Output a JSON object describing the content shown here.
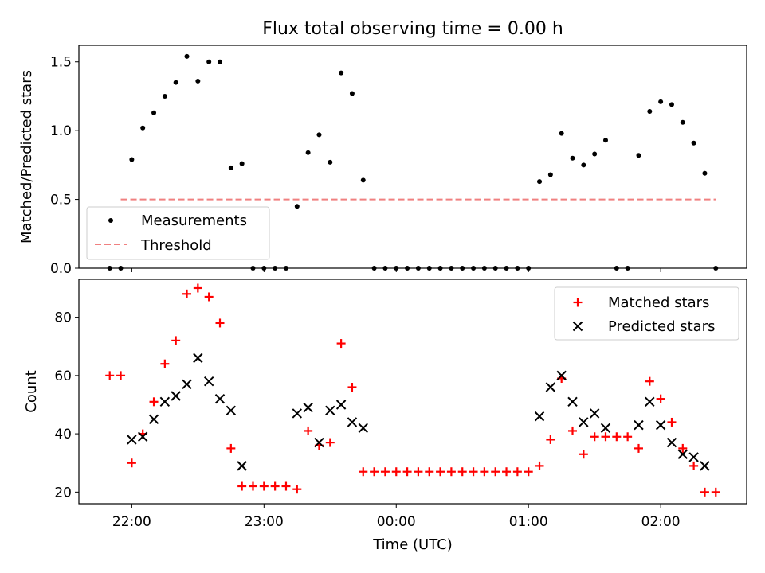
{
  "chart_data": [
    {
      "type": "scatter",
      "title": "Flux total observing time = 0.00 h",
      "ylabel": "Matched/Predicted stars",
      "xlabel": "",
      "ylim": [
        0,
        1.62
      ],
      "yticks": [
        0.0,
        0.5,
        1.0,
        1.5
      ],
      "ytick_labels": [
        "0.0",
        "0.5",
        "1.0",
        "1.5"
      ],
      "legend": {
        "position": "lower-left",
        "entries": [
          {
            "label": "Measurements",
            "marker": "dot",
            "color": "#000000"
          },
          {
            "label": "Threshold",
            "marker": "dashed-line",
            "color": "#f08080"
          }
        ]
      },
      "threshold": {
        "y": 0.5,
        "x_start": "21:55",
        "x_end": "02:25",
        "color": "#f08080"
      },
      "series": [
        {
          "name": "Measurements",
          "color": "#000000",
          "points": [
            [
              "21:50",
              0
            ],
            [
              "21:55",
              0
            ],
            [
              "22:00",
              0.79
            ],
            [
              "22:05",
              1.02
            ],
            [
              "22:10",
              1.13
            ],
            [
              "22:15",
              1.25
            ],
            [
              "22:20",
              1.35
            ],
            [
              "22:25",
              1.54
            ],
            [
              "22:30",
              1.36
            ],
            [
              "22:35",
              1.5
            ],
            [
              "22:40",
              1.5
            ],
            [
              "22:45",
              0.73
            ],
            [
              "22:50",
              0.76
            ],
            [
              "22:55",
              0
            ],
            [
              "23:00",
              0
            ],
            [
              "23:05",
              0
            ],
            [
              "23:10",
              0
            ],
            [
              "23:15",
              0.45
            ],
            [
              "23:20",
              0.84
            ],
            [
              "23:25",
              0.97
            ],
            [
              "23:30",
              0.77
            ],
            [
              "23:35",
              1.42
            ],
            [
              "23:40",
              1.27
            ],
            [
              "23:45",
              0.64
            ],
            [
              "23:50",
              0
            ],
            [
              "23:55",
              0
            ],
            [
              "00:00",
              0
            ],
            [
              "00:05",
              0
            ],
            [
              "00:10",
              0
            ],
            [
              "00:15",
              0
            ],
            [
              "00:20",
              0
            ],
            [
              "00:25",
              0
            ],
            [
              "00:30",
              0
            ],
            [
              "00:35",
              0
            ],
            [
              "00:40",
              0
            ],
            [
              "00:45",
              0
            ],
            [
              "00:50",
              0
            ],
            [
              "00:55",
              0
            ],
            [
              "01:00",
              0
            ],
            [
              "01:05",
              0.63
            ],
            [
              "01:10",
              0.68
            ],
            [
              "01:15",
              0.98
            ],
            [
              "01:20",
              0.8
            ],
            [
              "01:25",
              0.75
            ],
            [
              "01:30",
              0.83
            ],
            [
              "01:35",
              0.93
            ],
            [
              "01:40",
              0
            ],
            [
              "01:45",
              0
            ],
            [
              "01:50",
              0.82
            ],
            [
              "01:55",
              1.14
            ],
            [
              "02:00",
              1.21
            ],
            [
              "02:05",
              1.19
            ],
            [
              "02:10",
              1.06
            ],
            [
              "02:15",
              0.91
            ],
            [
              "02:20",
              0.69
            ],
            [
              "02:25",
              0
            ]
          ]
        }
      ]
    },
    {
      "type": "scatter",
      "title": "",
      "ylabel": "Count",
      "xlabel": "Time (UTC)",
      "ylim": [
        16,
        93
      ],
      "yticks": [
        20,
        40,
        60,
        80
      ],
      "ytick_labels": [
        "20",
        "40",
        "60",
        "80"
      ],
      "xlim": [
        "21:36",
        "02:39"
      ],
      "xticks": [
        "22:00",
        "23:00",
        "00:00",
        "01:00",
        "02:00"
      ],
      "xtick_labels": [
        "22:00",
        "23:00",
        "00:00",
        "01:00",
        "02:00"
      ],
      "legend": {
        "position": "top-right",
        "entries": [
          {
            "label": "Matched stars",
            "marker": "plus",
            "color": "#ff0000"
          },
          {
            "label": "Predicted stars",
            "marker": "x",
            "color": "#000000"
          }
        ]
      },
      "series": [
        {
          "name": "Matched stars",
          "color": "#ff0000",
          "points": [
            [
              "21:50",
              60
            ],
            [
              "21:55",
              60
            ],
            [
              "22:00",
              30
            ],
            [
              "22:05",
              40
            ],
            [
              "22:10",
              51
            ],
            [
              "22:15",
              64
            ],
            [
              "22:20",
              72
            ],
            [
              "22:25",
              88
            ],
            [
              "22:30",
              90
            ],
            [
              "22:35",
              87
            ],
            [
              "22:40",
              78
            ],
            [
              "22:45",
              35
            ],
            [
              "22:50",
              22
            ],
            [
              "22:55",
              22
            ],
            [
              "23:00",
              22
            ],
            [
              "23:05",
              22
            ],
            [
              "23:10",
              22
            ],
            [
              "23:15",
              21
            ],
            [
              "23:20",
              41
            ],
            [
              "23:25",
              36
            ],
            [
              "23:30",
              37
            ],
            [
              "23:35",
              71
            ],
            [
              "23:40",
              56
            ],
            [
              "23:45",
              27
            ],
            [
              "23:50",
              27
            ],
            [
              "23:55",
              27
            ],
            [
              "00:00",
              27
            ],
            [
              "00:05",
              27
            ],
            [
              "00:10",
              27
            ],
            [
              "00:15",
              27
            ],
            [
              "00:20",
              27
            ],
            [
              "00:25",
              27
            ],
            [
              "00:30",
              27
            ],
            [
              "00:35",
              27
            ],
            [
              "00:40",
              27
            ],
            [
              "00:45",
              27
            ],
            [
              "00:50",
              27
            ],
            [
              "00:55",
              27
            ],
            [
              "01:00",
              27
            ],
            [
              "01:05",
              29
            ],
            [
              "01:10",
              38
            ],
            [
              "01:15",
              59
            ],
            [
              "01:20",
              41
            ],
            [
              "01:25",
              33
            ],
            [
              "01:30",
              39
            ],
            [
              "01:35",
              39
            ],
            [
              "01:40",
              39
            ],
            [
              "01:45",
              39
            ],
            [
              "01:50",
              35
            ],
            [
              "01:55",
              58
            ],
            [
              "02:00",
              52
            ],
            [
              "02:05",
              44
            ],
            [
              "02:10",
              35
            ],
            [
              "02:15",
              29
            ],
            [
              "02:20",
              20
            ],
            [
              "02:25",
              20
            ]
          ]
        },
        {
          "name": "Predicted stars",
          "color": "#000000",
          "points": [
            [
              "22:00",
              38
            ],
            [
              "22:05",
              39
            ],
            [
              "22:10",
              45
            ],
            [
              "22:15",
              51
            ],
            [
              "22:20",
              53
            ],
            [
              "22:25",
              57
            ],
            [
              "22:30",
              66
            ],
            [
              "22:35",
              58
            ],
            [
              "22:40",
              52
            ],
            [
              "22:45",
              48
            ],
            [
              "22:50",
              29
            ],
            [
              "23:15",
              47
            ],
            [
              "23:20",
              49
            ],
            [
              "23:25",
              37
            ],
            [
              "23:30",
              48
            ],
            [
              "23:35",
              50
            ],
            [
              "23:40",
              44
            ],
            [
              "23:45",
              42
            ],
            [
              "01:05",
              46
            ],
            [
              "01:10",
              56
            ],
            [
              "01:15",
              60
            ],
            [
              "01:20",
              51
            ],
            [
              "01:25",
              44
            ],
            [
              "01:30",
              47
            ],
            [
              "01:35",
              42
            ],
            [
              "01:50",
              43
            ],
            [
              "01:55",
              51
            ],
            [
              "02:00",
              43
            ],
            [
              "02:05",
              37
            ],
            [
              "02:10",
              33
            ],
            [
              "02:15",
              32
            ],
            [
              "02:20",
              29
            ]
          ]
        }
      ]
    }
  ]
}
